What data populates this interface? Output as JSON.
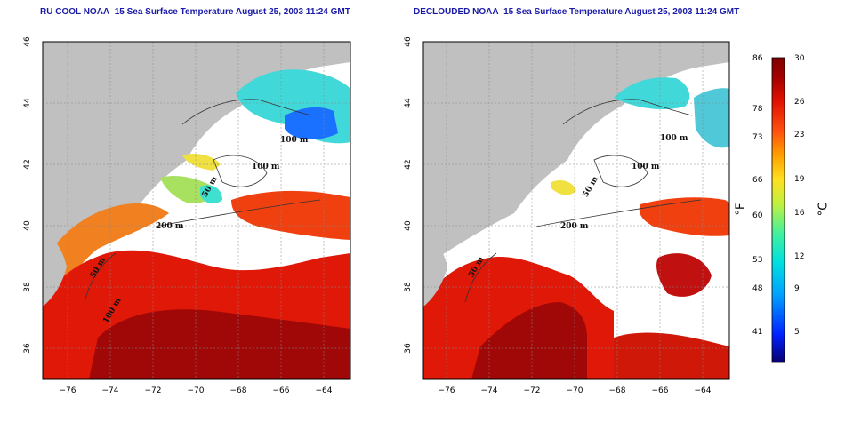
{
  "panels": [
    {
      "title": "RU COOL NOAA–15 Sea Surface Temperature August 25, 2003 11:24 GMT"
    },
    {
      "title": "DECLOUDED NOAA–15 Sea Surface Temperature August 25, 2003 11:24 GMT"
    }
  ],
  "axes": {
    "x_ticks": [
      "−76",
      "−74",
      "−72",
      "−70",
      "−68",
      "−66",
      "−64"
    ],
    "y_ticks": [
      "46",
      "44",
      "42",
      "40",
      "38",
      "36"
    ]
  },
  "contour_labels": {
    "left": [
      "100 m",
      "100 m",
      "50 m",
      "200 m",
      "50 m",
      "100 m"
    ],
    "right": [
      "100 m",
      "100 m",
      "50 m",
      "200 m",
      "50 m"
    ]
  },
  "colorbar": {
    "fahrenheit_label": "°F",
    "celsius_label": "°C",
    "fahrenheit_ticks": [
      "86",
      "78",
      "73",
      "66",
      "60",
      "53",
      "48",
      "41"
    ],
    "celsius_ticks": [
      "30",
      "26",
      "23",
      "19",
      "16",
      "12",
      "9",
      "5"
    ],
    "colors": [
      "#08006e",
      "#0020ff",
      "#00a0ff",
      "#00e0e0",
      "#40f0a0",
      "#c0f040",
      "#ffe020",
      "#ffa000",
      "#ff5010",
      "#e01000",
      "#a00000",
      "#800000"
    ]
  }
}
